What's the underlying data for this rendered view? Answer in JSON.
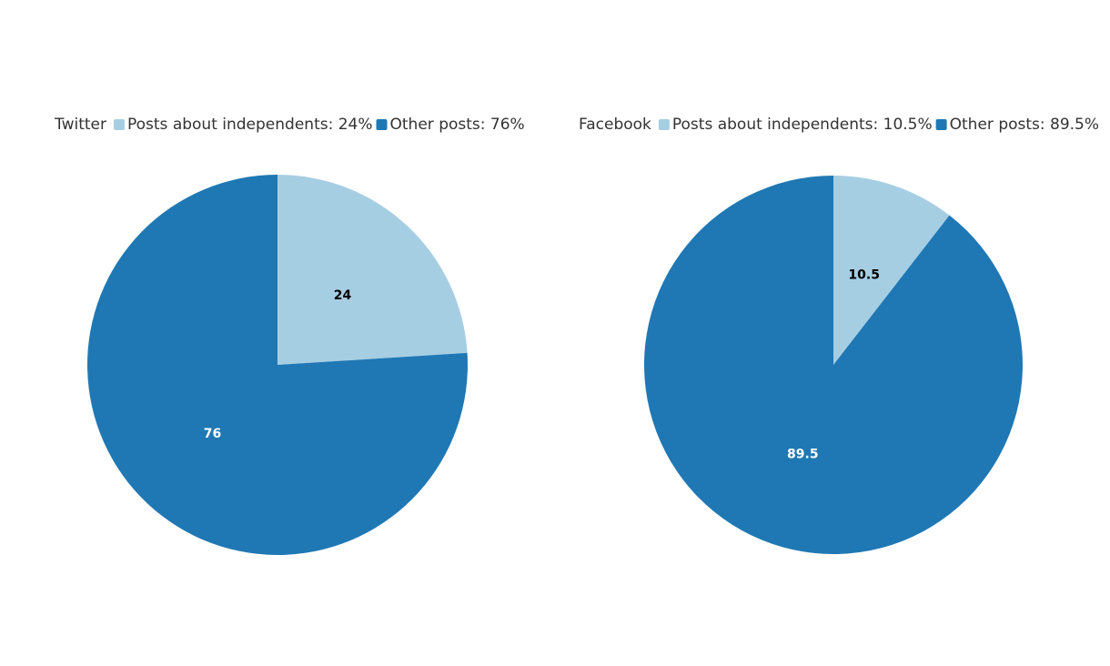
{
  "chart_data": [
    {
      "type": "pie",
      "title": "Twitter",
      "categories": [
        "Posts about independents: 24%",
        "Other posts: 76%"
      ],
      "values": [
        24,
        76
      ],
      "colors": [
        "#a6cee3",
        "#1f78b4"
      ]
    },
    {
      "type": "pie",
      "title": "Facebook",
      "categories": [
        "Posts about independents: 10.5%",
        "Other posts: 89.5%"
      ],
      "values": [
        10.5,
        89.5
      ],
      "colors": [
        "#a6cee3",
        "#1f78b4"
      ]
    }
  ]
}
